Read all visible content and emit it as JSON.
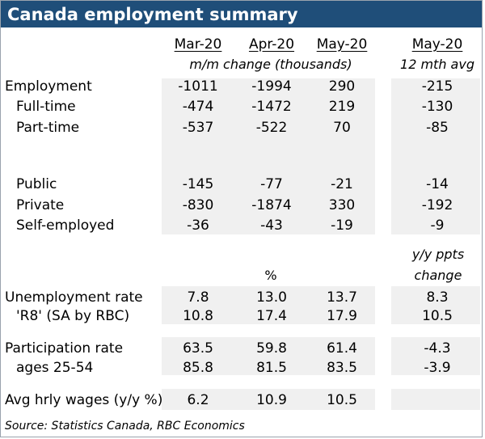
{
  "title": "Canada employment summary",
  "columns": [
    "Mar-20",
    "Apr-20",
    "May-20",
    "May-20"
  ],
  "subheaders": {
    "mm_change": "m/m change (thousands)",
    "twelve_mth": "12 mth avg",
    "yy_ppts": "y/y ppts",
    "change": "change",
    "percent": "%"
  },
  "rows": [
    {
      "label": "Employment",
      "values": [
        "-1011",
        "-1994",
        "290",
        "-215"
      ]
    },
    {
      "label": "Full-time",
      "values": [
        "-474",
        "-1472",
        "219",
        "-130"
      ]
    },
    {
      "label": "Part-time",
      "values": [
        "-537",
        "-522",
        "70",
        "-85"
      ]
    },
    {
      "label": "Public",
      "values": [
        "-145",
        "-77",
        "-21",
        "-14"
      ]
    },
    {
      "label": "Private",
      "values": [
        "-830",
        "-1874",
        "330",
        "-192"
      ]
    },
    {
      "label": "Self-employed",
      "values": [
        "-36",
        "-43",
        "-19",
        "-9"
      ]
    },
    {
      "label": "Unemployment rate",
      "values": [
        "7.8",
        "13.0",
        "13.7",
        "8.3"
      ]
    },
    {
      "label": "'R8' (SA by RBC)",
      "values": [
        "10.8",
        "17.4",
        "17.9",
        "10.5"
      ]
    },
    {
      "label": "Participation rate",
      "values": [
        "63.5",
        "59.8",
        "61.4",
        "-4.3"
      ]
    },
    {
      "label": "ages 25-54",
      "values": [
        "85.8",
        "81.5",
        "83.5",
        "-3.9"
      ]
    },
    {
      "label": "Avg hrly wages (y/y %)",
      "values": [
        "6.2",
        "10.9",
        "10.5",
        ""
      ]
    }
  ],
  "source": "Source:  Statistics Canada, RBC Economics",
  "colors": {
    "title_bg": "#1f4e79",
    "title_text": "#ffffff",
    "shade": "#f0f0f0"
  }
}
